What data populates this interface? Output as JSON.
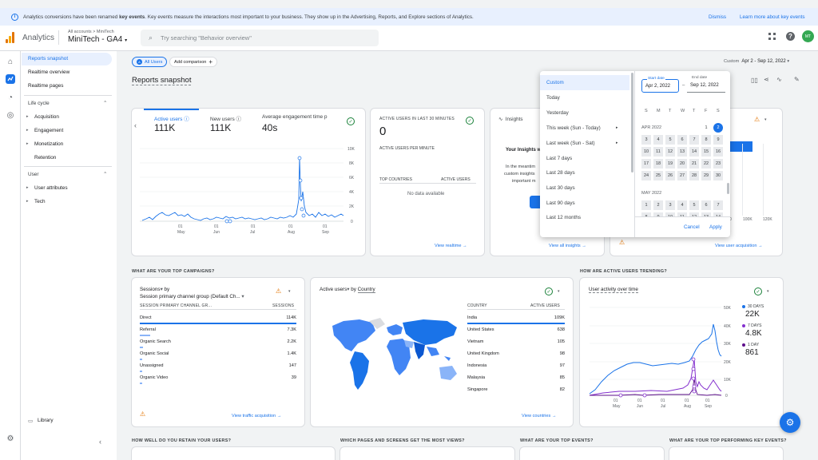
{
  "banner": {
    "text_before": "Analytics conversions have been renamed ",
    "text_bold": "key events",
    "text_after": ". Key events measure the interactions most important to your business. They show up in the Advertising, Reports, and Explore sections of Analytics.",
    "dismiss": "Dismiss",
    "learn_more": "Learn more about key events"
  },
  "header": {
    "app_name": "Analytics",
    "breadcrumb": "All accounts > MiniTech",
    "property": "MiniTech - GA4",
    "search_placeholder": "Try searching \"Behavior overview\"",
    "avatar_initials": "MT"
  },
  "nav": {
    "reports_snapshot": "Reports snapshot",
    "realtime_overview": "Realtime overview",
    "realtime_pages": "Realtime pages",
    "lifecycle": "Life cycle",
    "acquisition": "Acquisition",
    "engagement": "Engagement",
    "monetization": "Monetization",
    "retention": "Retention",
    "user": "User",
    "user_attributes": "User attributes",
    "tech": "Tech",
    "library": "Library"
  },
  "toolbar": {
    "all_users": "All Users",
    "add_comparison": "Add comparison",
    "date_prefix": "Custom",
    "date_range": "Apr 2 - Sep 12, 2022",
    "page_title": "Reports snapshot"
  },
  "overview": {
    "metrics": [
      {
        "label": "Active users",
        "value": "111K"
      },
      {
        "label": "New users",
        "value": "111K"
      },
      {
        "label": "Average engagement time p",
        "value": "40s"
      }
    ],
    "y_ticks": [
      "10K",
      "8K",
      "6K",
      "4K",
      "2K",
      "0"
    ],
    "x_ticks": [
      {
        "day": "01",
        "month": "May"
      },
      {
        "day": "01",
        "month": "Jun"
      },
      {
        "day": "01",
        "month": "Jul"
      },
      {
        "day": "01",
        "month": "Aug"
      },
      {
        "day": "01",
        "month": "Sep"
      }
    ]
  },
  "realtime": {
    "title": "ACTIVE USERS IN LAST 30 MINUTES",
    "value": "0",
    "per_minute": "ACTIVE USERS PER MINUTE",
    "col1": "TOP COUNTRIES",
    "col2": "ACTIVE USERS",
    "empty": "No data available",
    "link": "View realtime"
  },
  "insights": {
    "title": "Insights",
    "text1": "Your Insights w",
    "text2": "In the meantim",
    "text3": "custom insights",
    "text4": "important m",
    "link": "View all insights"
  },
  "acq_card": {
    "ticks": [
      "0",
      "100K",
      "120K"
    ],
    "link": "View user acquisition"
  },
  "datepicker": {
    "options": [
      "Custom",
      "Today",
      "Yesterday",
      "This week (Sun - Today)",
      "Last week (Sun - Sat)",
      "Last 7 days",
      "Last 28 days",
      "Last 30 days",
      "Last 90 days",
      "Last 12 months"
    ],
    "start_label": "Start date",
    "start_value": "Apr 2, 2022",
    "end_label": "End date",
    "end_value": "Sep 12, 2022",
    "dow": [
      "S",
      "M",
      "T",
      "W",
      "T",
      "F",
      "S"
    ],
    "month1": "APR 2022",
    "month2": "MAY 2022",
    "apr_days": [
      "1",
      "2",
      "3",
      "4",
      "5",
      "6",
      "7",
      "8",
      "9",
      "10",
      "11",
      "12",
      "13",
      "14",
      "15",
      "16",
      "17",
      "18",
      "19",
      "20",
      "21",
      "22",
      "23",
      "24",
      "25",
      "26",
      "27",
      "28",
      "29",
      "30"
    ],
    "may_days": [
      "1",
      "2",
      "3",
      "4",
      "5",
      "6",
      "7",
      "8",
      "9",
      "10",
      "11",
      "12",
      "13",
      "14"
    ],
    "cancel": "Cancel",
    "apply": "Apply"
  },
  "campaigns": {
    "section": "WHAT ARE YOUR TOP CAMPAIGNS?",
    "title_metric": "Sessions",
    "by": "by",
    "dimension": "Session primary channel group (Default Ch...",
    "col1": "SESSION PRIMARY CHANNEL GR...",
    "col2": "SESSIONS",
    "rows": [
      {
        "name": "Direct",
        "value": "114K",
        "frac": 1.0
      },
      {
        "name": "Referral",
        "value": "7.3K",
        "frac": 0.064
      },
      {
        "name": "Organic Search",
        "value": "2.2K",
        "frac": 0.02
      },
      {
        "name": "Organic Social",
        "value": "1.4K",
        "frac": 0.012
      },
      {
        "name": "Unassigned",
        "value": "147",
        "frac": 0.002
      },
      {
        "name": "Organic Video",
        "value": "39",
        "frac": 0.001
      }
    ],
    "link": "View traffic acquisition"
  },
  "countries": {
    "title": "Active users",
    "by": "by",
    "dimension": "Country",
    "col1": "COUNTRY",
    "col2": "ACTIVE USERS",
    "rows": [
      {
        "name": "India",
        "value": "109K",
        "frac": 1.0
      },
      {
        "name": "United States",
        "value": "638",
        "frac": 0.006
      },
      {
        "name": "Vietnam",
        "value": "105",
        "frac": 0.001
      },
      {
        "name": "United Kingdom",
        "value": "98",
        "frac": 0.001
      },
      {
        "name": "Indonesia",
        "value": "97",
        "frac": 0.001
      },
      {
        "name": "Malaysia",
        "value": "85",
        "frac": 0.001
      },
      {
        "name": "Singapore",
        "value": "82",
        "frac": 0.001
      }
    ],
    "link": "View countries"
  },
  "trend": {
    "section": "HOW ARE ACTIVE USERS TRENDING?",
    "title": "User activity over time",
    "y_ticks": [
      "50K",
      "40K",
      "30K",
      "20K",
      "10K",
      "0"
    ],
    "x_ticks": [
      {
        "day": "01",
        "month": "May"
      },
      {
        "day": "01",
        "month": "Jun"
      },
      {
        "day": "01",
        "month": "Jul"
      },
      {
        "day": "01",
        "month": "Aug"
      },
      {
        "day": "01",
        "month": "Sep"
      }
    ],
    "legend": [
      {
        "label": "30 DAYS",
        "value": "22K",
        "color": "#1a73e8"
      },
      {
        "label": "7 DAYS",
        "value": "4.8K",
        "color": "#8430ce"
      },
      {
        "label": "1 DAY",
        "value": "861",
        "color": "#5e0f8b"
      }
    ]
  },
  "bottom_sections": [
    "HOW WELL DO YOU RETAIN YOUR USERS?",
    "WHICH PAGES AND SCREENS GET THE MOST VIEWS?",
    "WHAT ARE YOUR TOP EVENTS?",
    "WHAT ARE YOUR TOP PERFORMING KEY EVENTS?"
  ],
  "colors": {
    "accent": "#1a73e8",
    "warn": "#e37400",
    "ok": "#188038"
  }
}
